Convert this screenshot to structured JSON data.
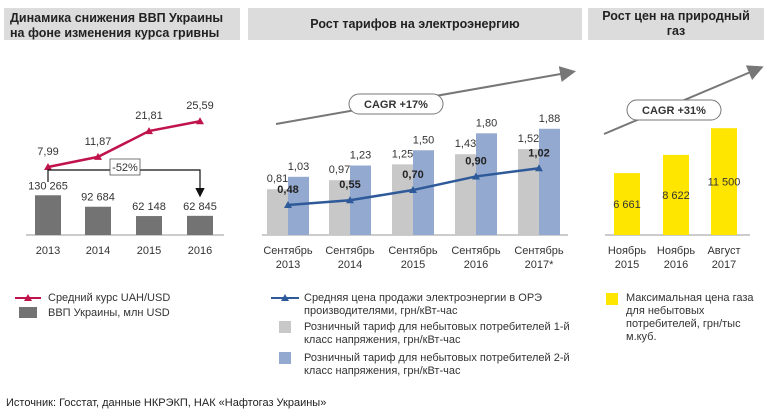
{
  "panels": {
    "gdp": {
      "title": "Динамика снижения ВВП Украины на фоне изменения курса гривны"
    },
    "tariff": {
      "title": "Рост тарифов на электроэнергию"
    },
    "gas": {
      "title": "Рост цен на природный газ"
    }
  },
  "chart_data": [
    {
      "type": "bar",
      "title": "Динамика снижения ВВП Украины на фоне изменения курса гривны",
      "categories": [
        "2013",
        "2014",
        "2015",
        "2016"
      ],
      "series": [
        {
          "name": "ВВП Украины, млн USD",
          "kind": "bar",
          "color": "#737373",
          "values": [
            130265,
            92684,
            62148,
            62845
          ],
          "labels": [
            "130 265",
            "92 684",
            "62 148",
            "62 845"
          ]
        },
        {
          "name": "Средний курс UAH/USD",
          "kind": "line",
          "color": "#c0134b",
          "values": [
            7.99,
            11.87,
            21.81,
            25.59
          ],
          "labels": [
            "7,99",
            "11,87",
            "21,81",
            "25,59"
          ]
        }
      ],
      "annotation": "-52%"
    },
    {
      "type": "bar",
      "title": "Рост тарифов на электроэнергию",
      "categories": [
        "Сентябрь 2013",
        "Сентябрь 2014",
        "Сентябрь 2015",
        "Сентябрь 2016",
        "Сентябрь 2017*"
      ],
      "category_lines": [
        [
          "Сентябрь",
          "2013"
        ],
        [
          "Сентябрь",
          "2014"
        ],
        [
          "Сентябрь",
          "2015"
        ],
        [
          "Сентябрь",
          "2016"
        ],
        [
          "Сентябрь",
          "2017*"
        ]
      ],
      "series": [
        {
          "name": "Розничный тариф для небытовых потребителей 1-й класс напряжения, грн/кВт-час",
          "kind": "bar",
          "color": "#c8c8c8",
          "values": [
            0.81,
            0.97,
            1.25,
            1.43,
            1.52
          ],
          "labels": [
            "0,81",
            "0,97",
            "1,25",
            "1,43",
            "1,52"
          ]
        },
        {
          "name": "Розничный тариф для небытовых потребителей 2-й класс напряжения, грн/кВт-час",
          "kind": "bar",
          "color": "#93a9cf",
          "values": [
            1.03,
            1.23,
            1.5,
            1.8,
            1.88
          ],
          "labels": [
            "1,03",
            "1,23",
            "1,50",
            "1,80",
            "1,88"
          ]
        },
        {
          "name": "Средняя цена продажи электроэнергии в ОРЭ производителями, грн/кВт-час",
          "kind": "line",
          "color": "#2e5a9a",
          "values": [
            0.48,
            0.55,
            0.7,
            0.9,
            1.02
          ],
          "labels": [
            "0,48",
            "0,55",
            "0,70",
            "0,90",
            "1,02"
          ]
        }
      ],
      "annotation": "CAGR +17%"
    },
    {
      "type": "bar",
      "title": "Рост цен на природный газ",
      "categories": [
        "Ноябрь 2015",
        "Ноябрь 2016",
        "Август 2017"
      ],
      "category_lines": [
        [
          "Ноябрь",
          "2015"
        ],
        [
          "Ноябрь",
          "2016"
        ],
        [
          "Август",
          "2017"
        ]
      ],
      "series": [
        {
          "name": "Максимальная цена газа для небытовых потребителей, грн/тыс м.куб.",
          "kind": "bar",
          "color": "#ffe600",
          "values": [
            6661,
            8622,
            11500
          ],
          "labels": [
            "6 661",
            "8 622",
            "11 500"
          ]
        }
      ],
      "annotation": "CAGR +31%"
    }
  ],
  "legends": {
    "gdp": [
      {
        "label": "Средний курс UAH/USD",
        "color": "#c0134b"
      },
      {
        "label": "ВВП Украины, млн USD",
        "color": "#737373"
      }
    ],
    "tariff": [
      {
        "label": "Средняя цена продажи электроэнергии в ОРЭ производителями, грн/кВт-час",
        "color": "#2e5a9a"
      },
      {
        "label": "Розничный тариф для небытовых потребителей 1-й класс напряжения, грн/кВт-час",
        "color": "#c8c8c8"
      },
      {
        "label": "Розничный тариф для небытовых потребителей 2-й класс напряжения, грн/кВт-час",
        "color": "#93a9cf"
      }
    ],
    "gas": [
      {
        "label": "Максимальная цена газа для небытовых потребителей, грн/тыс м.куб.",
        "color": "#ffe600"
      }
    ]
  },
  "source": "Источник: Госстат, данные НКРЭКП, НАК «Нафтогаз Украины»"
}
